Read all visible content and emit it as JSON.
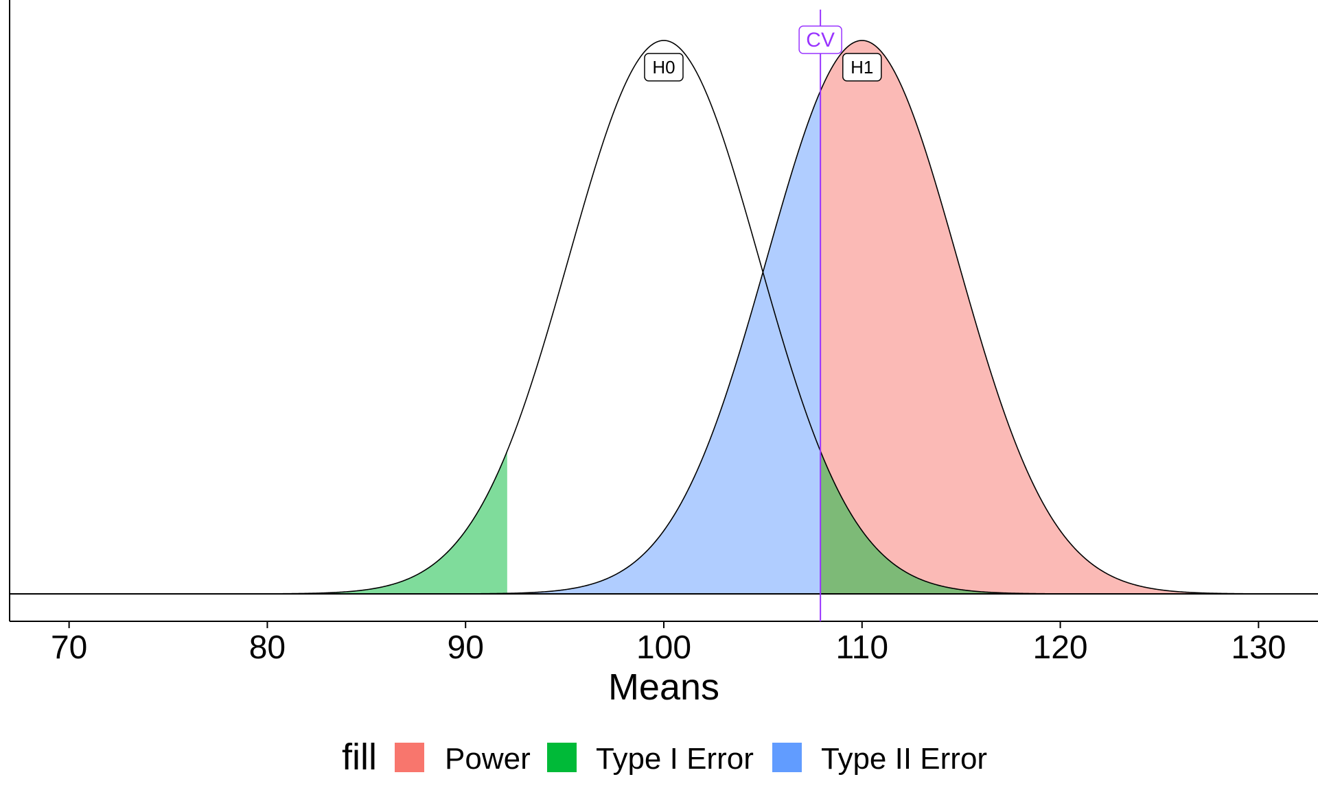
{
  "chart_data": {
    "type": "area",
    "xlabel": "Means",
    "xlim": [
      67,
      133
    ],
    "x_ticks": [
      70,
      80,
      90,
      100,
      110,
      120,
      130
    ],
    "x_tick_labels": [
      "70",
      "80",
      "90",
      "100",
      "110",
      "120",
      "130"
    ],
    "distributions": [
      {
        "label": "H0",
        "mean": 100,
        "sd": 4.8
      },
      {
        "label": "H1",
        "mean": 110,
        "sd": 4.8
      }
    ],
    "critical_value": {
      "label": "CV",
      "value": 107.9,
      "color": "#9933ff"
    },
    "lower_critical_value": 92.1,
    "regions": [
      {
        "fill": "Power",
        "curve": "H1",
        "from": 107.9,
        "to": 133
      },
      {
        "fill": "Type II Error",
        "curve": "H1",
        "from": 67,
        "to": 107.9
      },
      {
        "fill": "Type I Error",
        "curve": "H0",
        "from": 67,
        "to": 92.1
      },
      {
        "fill": "Type I Error",
        "curve": "H0",
        "from": 107.9,
        "to": 133
      }
    ],
    "legend": {
      "title": "fill",
      "position": "bottom",
      "items": [
        {
          "label": "Power",
          "color": "#F8766D"
        },
        {
          "label": "Type I Error",
          "color": "#00BA38"
        },
        {
          "label": "Type II Error",
          "color": "#619CFF"
        }
      ]
    },
    "grid": false
  }
}
